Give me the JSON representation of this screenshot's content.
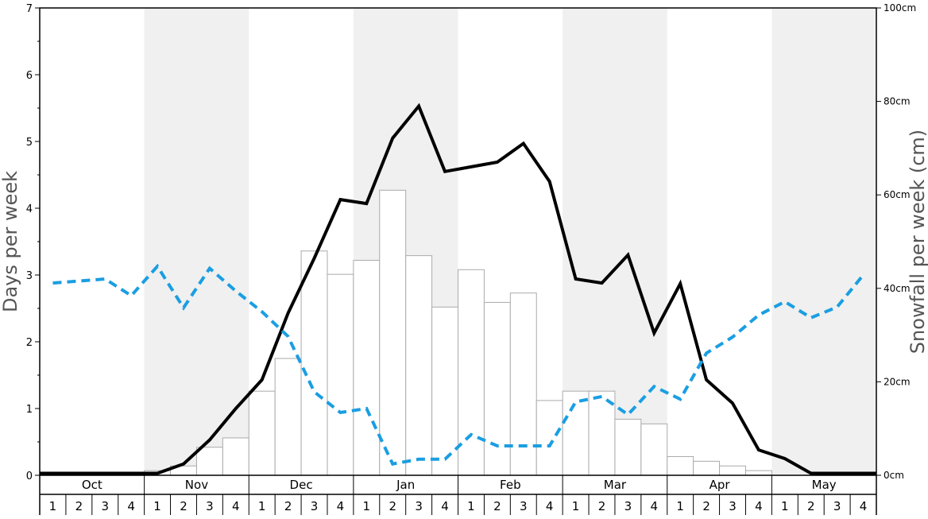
{
  "chart_data": {
    "type": "bar",
    "ylabel": "Days per week",
    "y2label": "Snowfall per week (cm)",
    "ylim": [
      0,
      7
    ],
    "y2lim": [
      0,
      100
    ],
    "yticks": [
      "0",
      "1",
      "2",
      "3",
      "4",
      "5",
      "6",
      "7"
    ],
    "y2ticks": [
      "0cm",
      "20cm",
      "40cm",
      "60cm",
      "80cm",
      "100cm"
    ],
    "y2tick_values": [
      0,
      20,
      40,
      60,
      80,
      100
    ],
    "months": [
      "Oct",
      "Nov",
      "Dec",
      "Jan",
      "Feb",
      "Mar",
      "Apr",
      "May"
    ],
    "week_labels": [
      "1",
      "2",
      "3",
      "4"
    ],
    "shaded_months": [
      "Nov",
      "Jan",
      "Mar",
      "May"
    ],
    "colors": {
      "shade": "#f0f0f0",
      "bar_fill": "#ffffff",
      "bar_stroke": "#aaaaaa",
      "snow_line": "#000000",
      "dashed_line": "#1a9ee2"
    },
    "series": [
      {
        "type": "bar",
        "axis": "right",
        "values": [
          0,
          0,
          0,
          0,
          1,
          2,
          6,
          8,
          18,
          25,
          48,
          43,
          46,
          61,
          47,
          36,
          44,
          37,
          39,
          16,
          18,
          18,
          12,
          11,
          4,
          3,
          2,
          1,
          0,
          0,
          0,
          0
        ]
      },
      {
        "type": "line",
        "axis": "left",
        "style": "solid",
        "values": [
          0.03,
          0.03,
          0.03,
          0.03,
          0.03,
          0.17,
          0.53,
          1.0,
          1.43,
          2.43,
          3.25,
          4.13,
          4.07,
          5.05,
          5.53,
          4.55,
          4.62,
          4.69,
          4.97,
          4.4,
          2.94,
          2.88,
          3.3,
          2.13,
          2.87,
          1.43,
          1.08,
          0.38,
          0.25,
          0.03,
          0.03,
          0.03
        ]
      },
      {
        "type": "line",
        "axis": "left",
        "style": "dashed",
        "values": [
          2.88,
          2.91,
          2.94,
          2.69,
          3.13,
          2.51,
          3.1,
          2.76,
          2.45,
          2.08,
          1.25,
          0.94,
          1.0,
          0.17,
          0.24,
          0.24,
          0.61,
          0.44,
          0.44,
          0.44,
          1.1,
          1.18,
          0.91,
          1.33,
          1.14,
          1.83,
          2.07,
          2.4,
          2.6,
          2.36,
          2.52,
          3.0
        ]
      }
    ]
  }
}
